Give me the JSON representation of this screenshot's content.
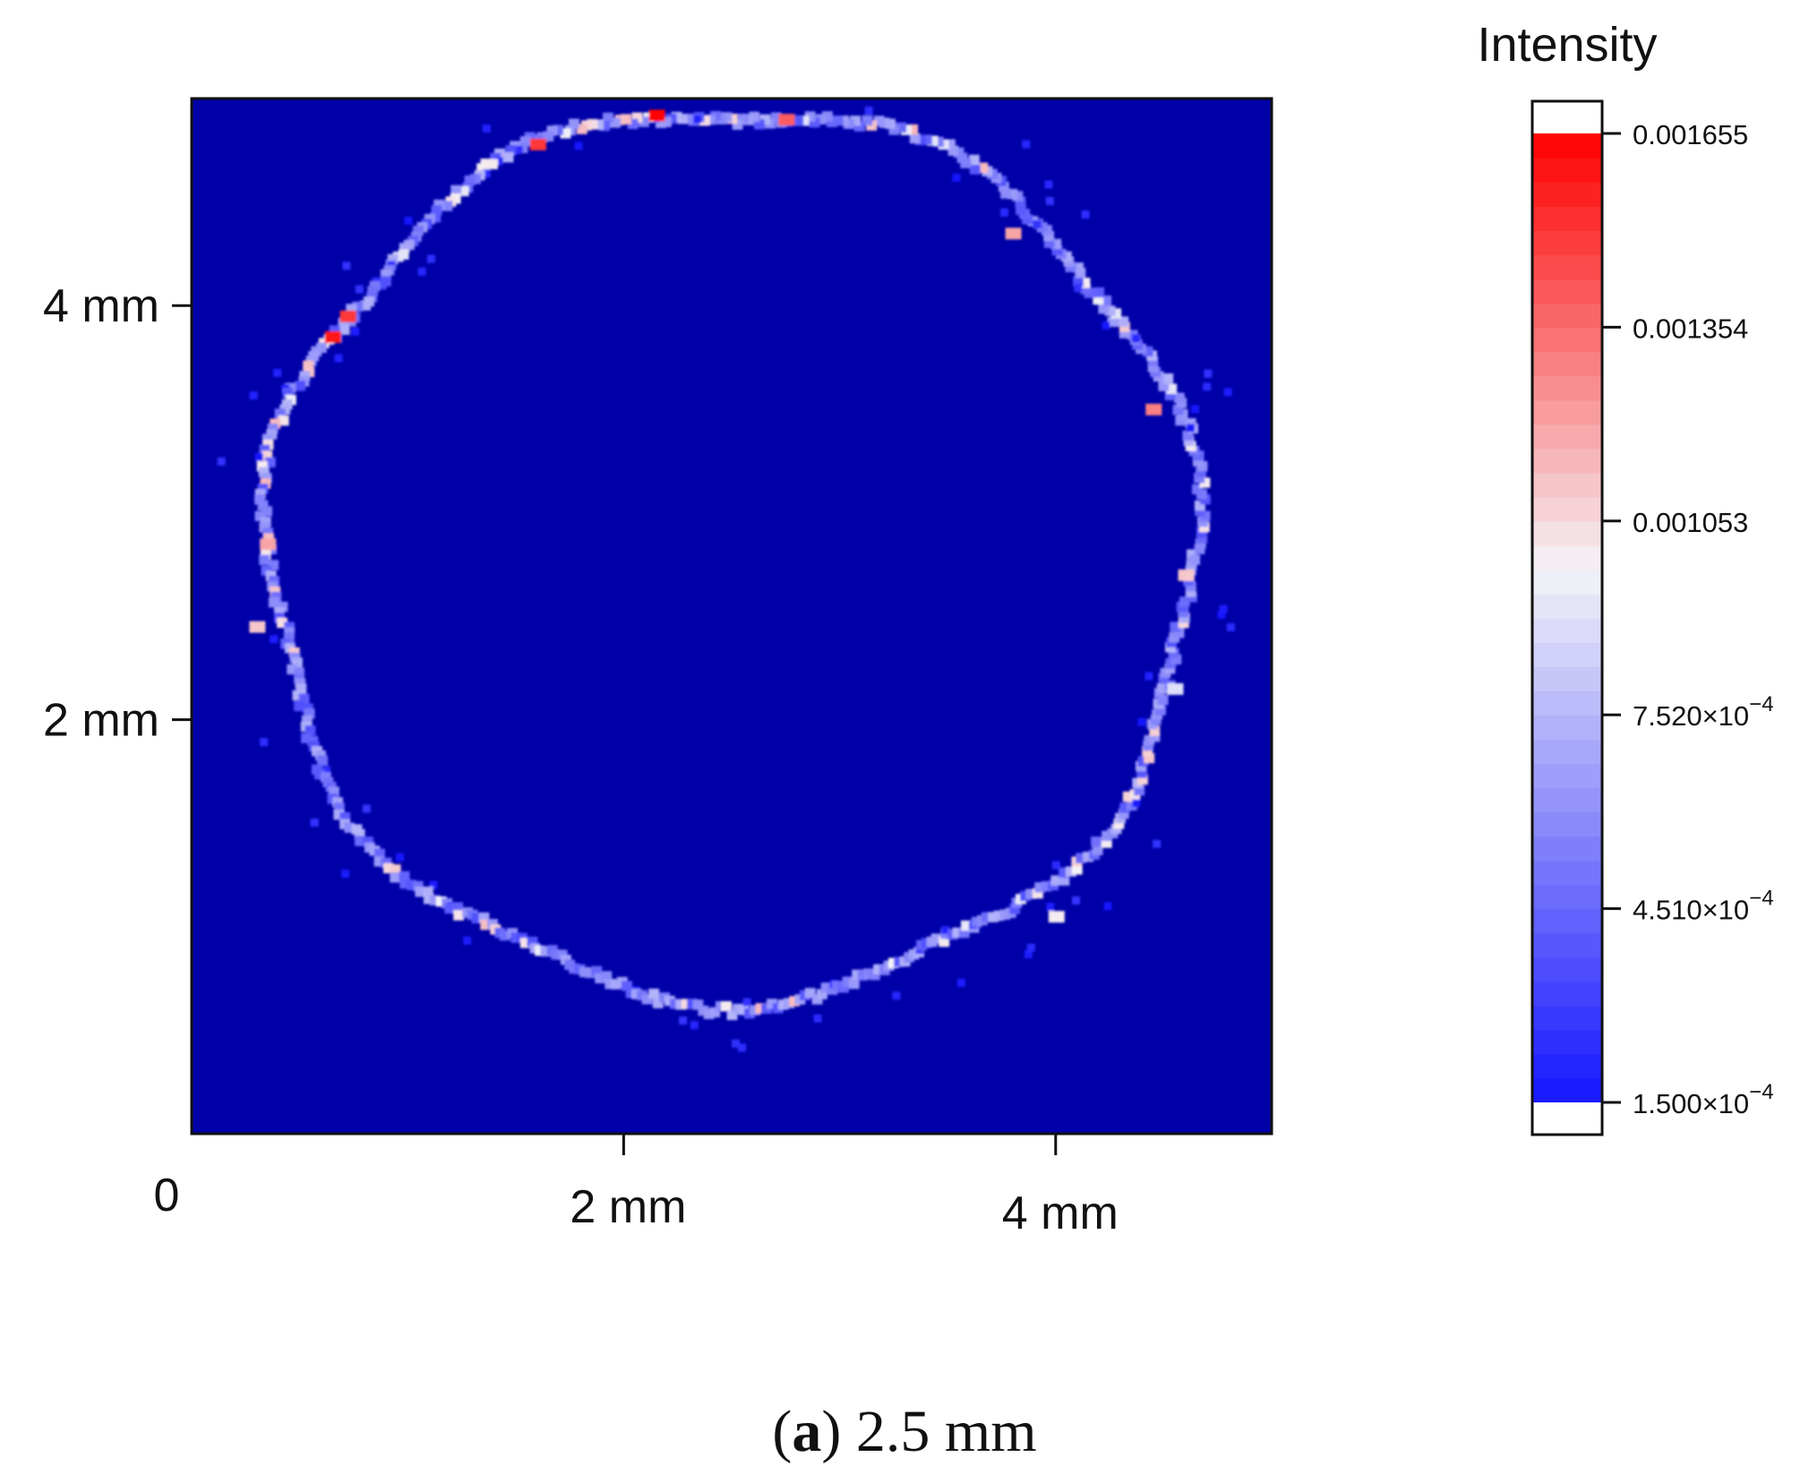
{
  "chart_data": {
    "type": "heatmap",
    "title": "",
    "caption": {
      "letter": "a",
      "text": "2.5 mm"
    },
    "x_axis": {
      "label": "",
      "range": [
        0,
        5.0
      ],
      "ticks": [
        {
          "value": 0,
          "label": "0"
        },
        {
          "value": 2,
          "label": "2 mm"
        },
        {
          "value": 4,
          "label": "4 mm"
        }
      ]
    },
    "y_axis": {
      "label": "",
      "range": [
        0,
        5.0
      ],
      "ticks": [
        {
          "value": 2,
          "label": "2 mm"
        },
        {
          "value": 4,
          "label": "4 mm"
        }
      ]
    },
    "colorbar": {
      "title": "Intensity",
      "range": [
        0.00015,
        0.001655
      ],
      "ticks": [
        {
          "value": 0.001655,
          "label": "0.001655",
          "exp": ""
        },
        {
          "value": 0.001354,
          "label": "0.001354",
          "exp": ""
        },
        {
          "value": 0.001053,
          "label": "0.001053",
          "exp": ""
        },
        {
          "value": 0.000752,
          "label": "7.520×10",
          "exp": "−4"
        },
        {
          "value": 0.000451,
          "label": "4.510×10",
          "exp": "−4"
        },
        {
          "value": 0.00015,
          "label": "1.500×10",
          "exp": "−4"
        }
      ],
      "colors": {
        "low": "#1515ff",
        "mid": "#f4f4f8",
        "high": "#ff0000",
        "background": "#0000a8"
      }
    },
    "ring": {
      "center_x": 2.5,
      "center_y": 2.8,
      "radius": 2.15
    },
    "hotspots": [
      {
        "x": 2.15,
        "y": 4.92,
        "value": 0.00165
      },
      {
        "x": 2.75,
        "y": 4.9,
        "value": 0.0014
      },
      {
        "x": 1.6,
        "y": 4.78,
        "value": 0.0015
      },
      {
        "x": 0.65,
        "y": 3.85,
        "value": 0.0016
      },
      {
        "x": 0.72,
        "y": 3.95,
        "value": 0.0015
      },
      {
        "x": 3.8,
        "y": 4.35,
        "value": 0.0012
      },
      {
        "x": 4.45,
        "y": 3.5,
        "value": 0.0013
      },
      {
        "x": 0.35,
        "y": 2.85,
        "value": 0.0012
      },
      {
        "x": 0.3,
        "y": 2.45,
        "value": 0.0011
      },
      {
        "x": 4.6,
        "y": 2.7,
        "value": 0.0011
      },
      {
        "x": 4.0,
        "y": 1.05,
        "value": 0.001
      },
      {
        "x": 4.55,
        "y": 2.15,
        "value": 0.0009
      }
    ]
  }
}
